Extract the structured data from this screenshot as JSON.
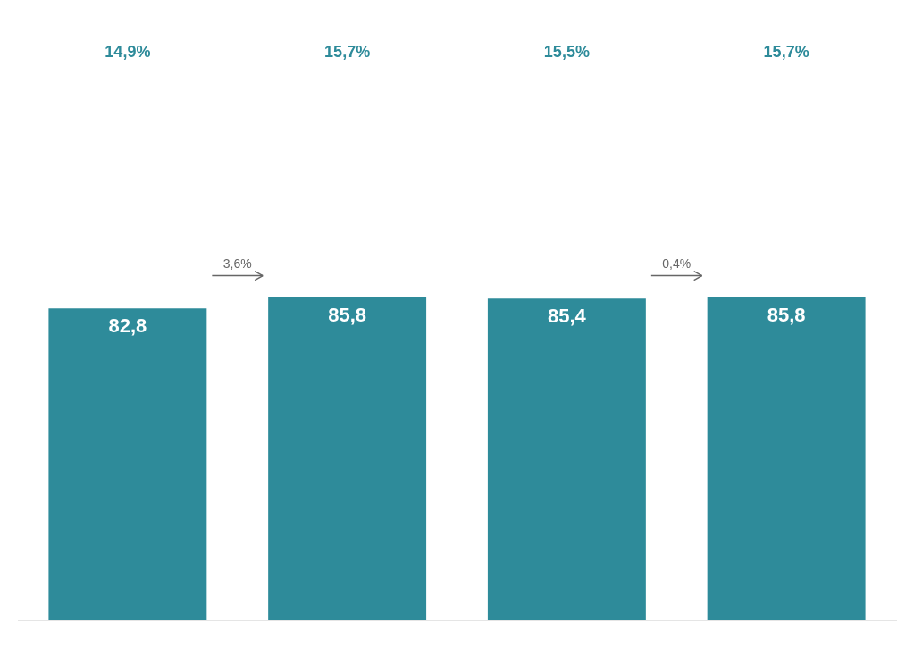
{
  "chart_data": {
    "type": "bar",
    "categories": [
      null,
      null,
      null,
      null
    ],
    "values": [
      82.8,
      85.8,
      85.4,
      85.8
    ],
    "value_labels": [
      "82,8",
      "85,8",
      "85,4",
      "85,8"
    ],
    "data_labels": true,
    "color": "#2e8b9a",
    "ylim": [
      0,
      160
    ],
    "grid": false,
    "tick_labels": false,
    "annotations": [
      {
        "text": "14,9%",
        "bar": 0
      },
      {
        "text": "15,7%",
        "bar": 1
      },
      {
        "text": "15,5%",
        "bar": 2
      },
      {
        "text": "15,7%",
        "bar": 3
      },
      {
        "text": "3,6%",
        "from": 0,
        "to": 1
      },
      {
        "text": "0,4%",
        "from": 2,
        "to": 3
      }
    ]
  }
}
